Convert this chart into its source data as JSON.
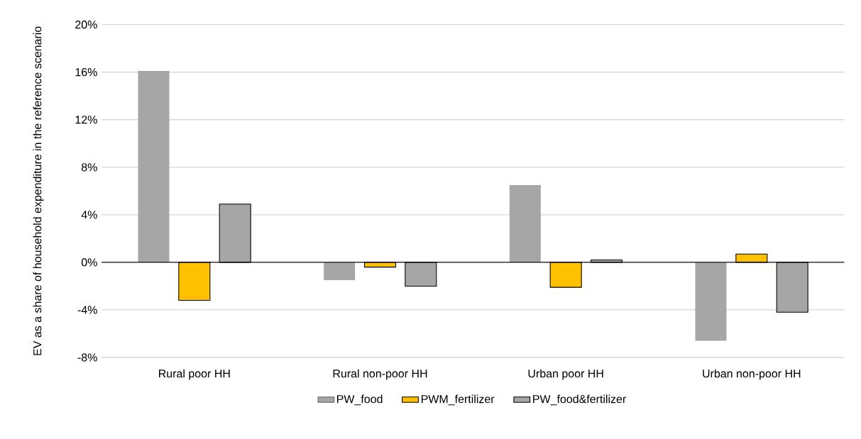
{
  "chart_data": {
    "type": "bar",
    "ylabel": "EV as a share of household expenditure in the reference scenario",
    "categories": [
      "Rural poor HH",
      "Rural non-poor HH",
      "Urban poor HH",
      "Urban non-poor HH"
    ],
    "series": [
      {
        "name": "PW_food",
        "color": "#a6a6a6",
        "values": [
          16.1,
          -1.5,
          6.5,
          -6.6
        ]
      },
      {
        "name": "PWM_fertilizer",
        "color": "#ffc000",
        "values": [
          -3.2,
          -0.4,
          -2.1,
          0.7
        ]
      },
      {
        "name": "PW_food&fertilizer",
        "color": "#a6a6a6",
        "values": [
          4.9,
          -2.0,
          0.2,
          -4.2
        ]
      }
    ],
    "ylim": [
      -8,
      20
    ],
    "yticks": [
      {
        "value": -8,
        "label": "-8%"
      },
      {
        "value": -4,
        "label": "-4%"
      },
      {
        "value": 0,
        "label": "0%"
      },
      {
        "value": 4,
        "label": "4%"
      },
      {
        "value": 8,
        "label": "8%"
      },
      {
        "value": 12,
        "label": "12%"
      },
      {
        "value": 16,
        "label": "16%"
      },
      {
        "value": 20,
        "label": "20%"
      }
    ],
    "grid": "y",
    "legend": "bottom"
  }
}
